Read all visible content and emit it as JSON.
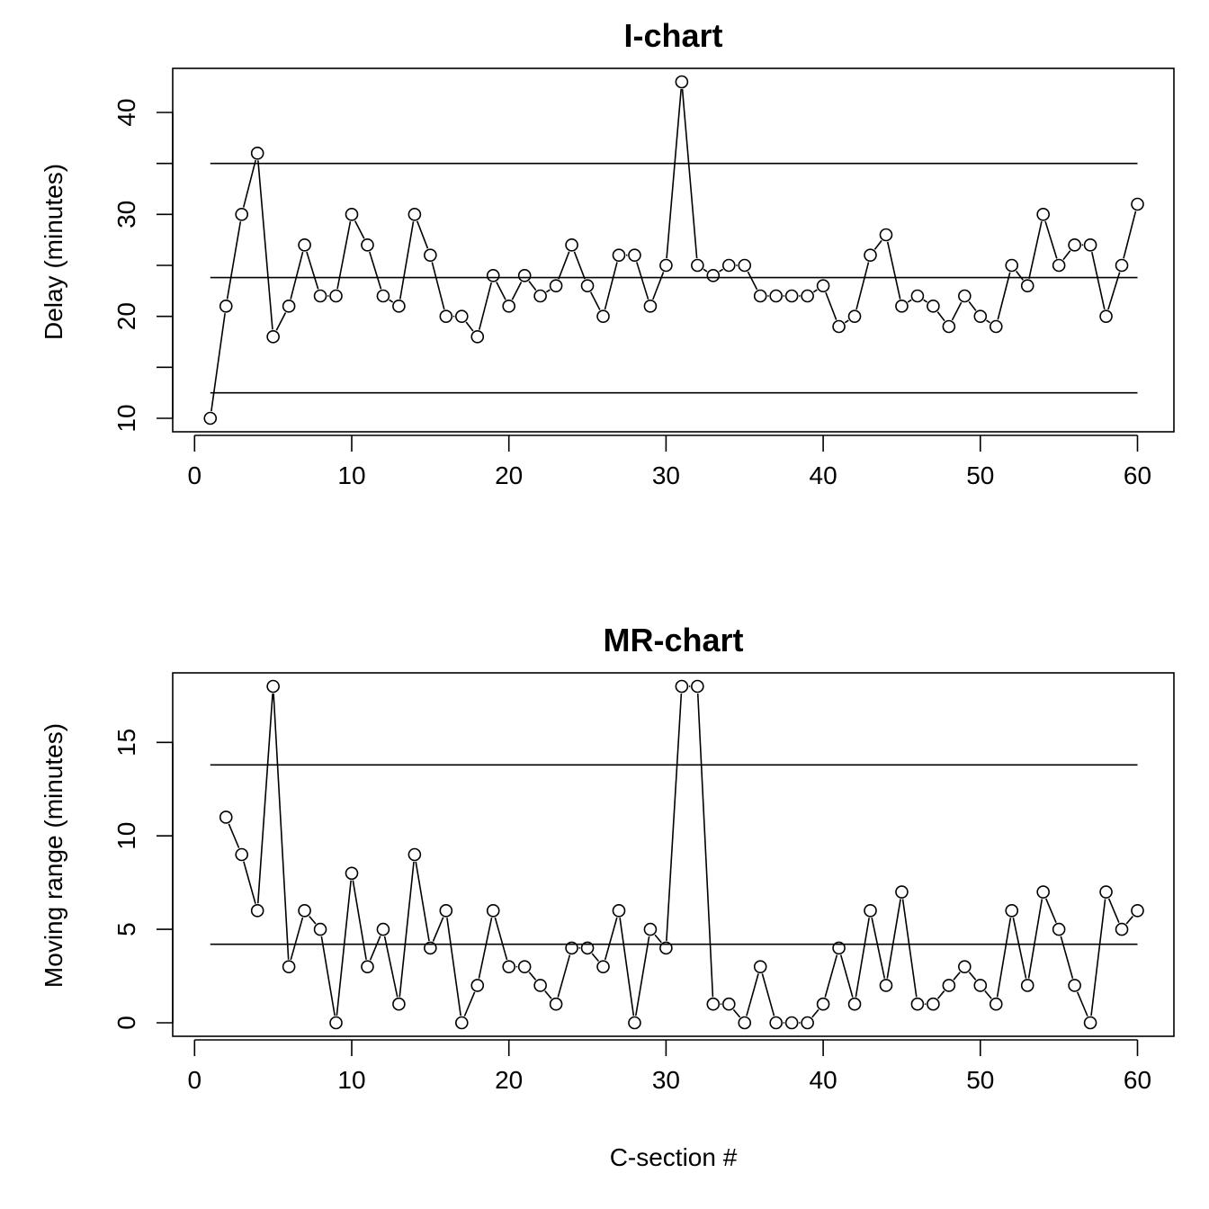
{
  "chart_data": [
    {
      "type": "line",
      "title": "I-chart",
      "xlabel": "",
      "ylabel": "Delay (minutes)",
      "xlim": [
        0,
        60
      ],
      "ylim": [
        10,
        43
      ],
      "x_ticks": [
        0,
        10,
        20,
        30,
        40,
        50,
        60
      ],
      "y_ticks": [
        10,
        20,
        30,
        40
      ],
      "x_tick_labels": [
        "0",
        "10",
        "20",
        "30",
        "40",
        "50",
        "60"
      ],
      "y_tick_labels": [
        "10",
        "20",
        "30",
        "40"
      ],
      "grid": false,
      "series": [
        {
          "x": [
            1,
            2,
            3,
            4,
            5,
            6,
            7,
            8,
            9,
            10,
            11,
            12,
            13,
            14,
            15,
            16,
            17,
            18,
            19,
            20,
            21,
            22,
            23,
            24,
            25,
            26,
            27,
            28,
            29,
            30,
            31,
            32,
            33,
            34,
            35,
            36,
            37,
            38,
            39,
            40,
            41,
            42,
            43,
            44,
            45,
            46,
            47,
            48,
            49,
            50,
            51,
            52,
            53,
            54,
            55,
            56,
            57,
            58,
            59,
            60
          ],
          "values": [
            10,
            21,
            30,
            36,
            18,
            21,
            27,
            22,
            22,
            30,
            27,
            22,
            21,
            30,
            26,
            20,
            20,
            18,
            24,
            21,
            24,
            22,
            23,
            27,
            23,
            20,
            26,
            26,
            21,
            25,
            43,
            25,
            24,
            25,
            25,
            22,
            22,
            22,
            22,
            23,
            19,
            20,
            26,
            28,
            21,
            22,
            21,
            19,
            22,
            20,
            19,
            25,
            23,
            30,
            25,
            27,
            27,
            20,
            25,
            31
          ]
        }
      ],
      "reference_lines": [
        {
          "y": 35,
          "x_range": [
            1,
            60
          ]
        },
        {
          "y": 23.8,
          "x_range": [
            1,
            60
          ]
        },
        {
          "y": 12.5,
          "x_range": [
            1,
            60
          ]
        }
      ]
    },
    {
      "type": "line",
      "title": "MR-chart",
      "xlabel": "C-section #",
      "ylabel": "Moving range (minutes)",
      "xlim": [
        0,
        60
      ],
      "ylim": [
        0,
        18
      ],
      "x_ticks": [
        0,
        10,
        20,
        30,
        40,
        50,
        60
      ],
      "y_ticks": [
        0,
        5,
        10,
        15
      ],
      "x_tick_labels": [
        "0",
        "10",
        "20",
        "30",
        "40",
        "50",
        "60"
      ],
      "y_tick_labels": [
        "0",
        "5",
        "10",
        "15"
      ],
      "grid": false,
      "series": [
        {
          "x": [
            2,
            3,
            4,
            5,
            6,
            7,
            8,
            9,
            10,
            11,
            12,
            13,
            14,
            15,
            16,
            17,
            18,
            19,
            20,
            21,
            22,
            23,
            24,
            25,
            26,
            27,
            28,
            29,
            30,
            31,
            32,
            33,
            34,
            35,
            36,
            37,
            38,
            39,
            40,
            41,
            42,
            43,
            44,
            45,
            46,
            47,
            48,
            49,
            50,
            51,
            52,
            53,
            54,
            55,
            56,
            57,
            58,
            59,
            60
          ],
          "values": [
            11,
            9,
            6,
            18,
            3,
            6,
            5,
            0,
            8,
            3,
            5,
            1,
            9,
            4,
            6,
            0,
            2,
            6,
            3,
            3,
            2,
            1,
            4,
            4,
            3,
            6,
            0,
            5,
            4,
            18,
            18,
            1,
            1,
            0,
            3,
            0,
            0,
            0,
            1,
            4,
            1,
            6,
            2,
            7,
            1,
            1,
            2,
            3,
            2,
            1,
            6,
            2,
            7,
            5,
            2,
            0,
            7,
            5,
            6
          ]
        }
      ],
      "reference_lines": [
        {
          "y": 13.8,
          "x_range": [
            1,
            60
          ]
        },
        {
          "y": 4.2,
          "x_range": [
            1,
            60
          ]
        }
      ]
    }
  ]
}
